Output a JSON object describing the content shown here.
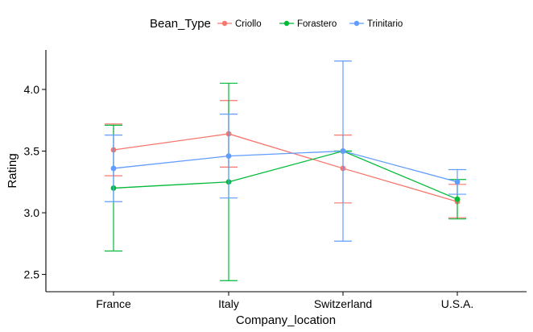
{
  "chart_data": {
    "type": "line",
    "xlabel": "Company_location",
    "ylabel": "Rating",
    "categories": [
      "France",
      "Italy",
      "Switzerland",
      "U.S.A."
    ],
    "ylim": [
      2.36,
      4.32
    ],
    "yticks": [
      2.5,
      3.0,
      3.5,
      4.0
    ],
    "ytick_labels": [
      "2.5",
      "3.0",
      "3.5",
      "4.0"
    ],
    "grid": false,
    "legend": {
      "title": "Bean_Type",
      "placement": "top",
      "entries": [
        "Criollo",
        "Forastero",
        "Trinitario"
      ]
    },
    "series": [
      {
        "name": "Criollo",
        "color": "#F8766D",
        "values": [
          3.51,
          3.64,
          3.36,
          3.09
        ],
        "lower": [
          3.3,
          3.37,
          3.08,
          2.96
        ],
        "upper": [
          3.72,
          3.91,
          3.63,
          3.23
        ]
      },
      {
        "name": "Forastero",
        "color": "#00BA38",
        "values": [
          3.2,
          3.25,
          3.5,
          3.11
        ],
        "lower": [
          2.69,
          2.45,
          3.5,
          2.95
        ],
        "upper": [
          3.71,
          4.05,
          3.5,
          3.27
        ]
      },
      {
        "name": "Trinitario",
        "color": "#619CFF",
        "values": [
          3.36,
          3.46,
          3.5,
          3.25
        ],
        "lower": [
          3.09,
          3.12,
          2.77,
          3.15
        ],
        "upper": [
          3.63,
          3.8,
          4.23,
          3.35
        ]
      }
    ]
  }
}
